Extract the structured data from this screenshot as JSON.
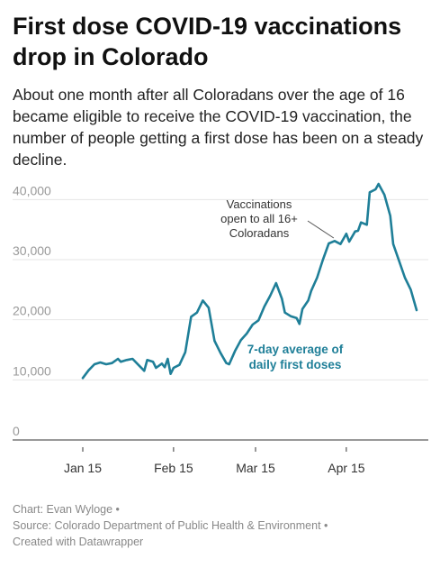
{
  "header": {
    "title_line1": "First dose COVID-19 vaccinations",
    "title_line2": "drop in Colorado",
    "subtitle": "About one month after all Coloradans over the age of 16 became eligible to receive the COVID-19 vaccination, the number of people getting a first dose has been on a steady decline."
  },
  "footer": {
    "credit": "Chart: Evan Wyloge •",
    "source": "Source: Colorado Department of Public Health & Environment •",
    "tool": "Created with Datawrapper"
  },
  "colors": {
    "line": "#1f7f98",
    "grid": "#e6e6e6",
    "tick_text": "#999999",
    "annotation_text": "#333333"
  },
  "chart_data": {
    "type": "line",
    "title": "First dose COVID-19 vaccinations drop in Colorado",
    "xlabel": "",
    "ylabel": "",
    "ylim": [
      0,
      42000
    ],
    "grid": true,
    "y_ticks": [
      {
        "value": 0,
        "label": "0"
      },
      {
        "value": 10000,
        "label": "10,000"
      },
      {
        "value": 20000,
        "label": "20,000"
      },
      {
        "value": 30000,
        "label": "30,000"
      },
      {
        "value": 40000,
        "label": "40,000"
      }
    ],
    "x_ticks": [
      {
        "date": "2021-01-15",
        "label": "Jan 15"
      },
      {
        "date": "2021-02-15",
        "label": "Feb 15"
      },
      {
        "date": "2021-03-15",
        "label": "Mar 15"
      },
      {
        "date": "2021-04-15",
        "label": "Apr 15"
      }
    ],
    "x_range": [
      "2021-01-07",
      "2021-04-24"
    ],
    "series": [
      {
        "name": "7-day average of daily first doses",
        "points": [
          {
            "date": "2021-01-15",
            "value": 10300
          },
          {
            "date": "2021-01-17",
            "value": 11600
          },
          {
            "date": "2021-01-19",
            "value": 12600
          },
          {
            "date": "2021-01-21",
            "value": 12900
          },
          {
            "date": "2021-01-23",
            "value": 12600
          },
          {
            "date": "2021-01-25",
            "value": 12800
          },
          {
            "date": "2021-01-27",
            "value": 13500
          },
          {
            "date": "2021-01-28",
            "value": 13000
          },
          {
            "date": "2021-01-30",
            "value": 13300
          },
          {
            "date": "2021-02-01",
            "value": 13500
          },
          {
            "date": "2021-02-03",
            "value": 12500
          },
          {
            "date": "2021-02-05",
            "value": 11500
          },
          {
            "date": "2021-02-06",
            "value": 13300
          },
          {
            "date": "2021-02-08",
            "value": 13000
          },
          {
            "date": "2021-02-09",
            "value": 12000
          },
          {
            "date": "2021-02-11",
            "value": 12700
          },
          {
            "date": "2021-02-12",
            "value": 12100
          },
          {
            "date": "2021-02-13",
            "value": 13500
          },
          {
            "date": "2021-02-14",
            "value": 11000
          },
          {
            "date": "2021-02-15",
            "value": 12000
          },
          {
            "date": "2021-02-17",
            "value": 12500
          },
          {
            "date": "2021-02-19",
            "value": 14600
          },
          {
            "date": "2021-02-21",
            "value": 20500
          },
          {
            "date": "2021-02-23",
            "value": 21200
          },
          {
            "date": "2021-02-25",
            "value": 23200
          },
          {
            "date": "2021-02-27",
            "value": 22000
          },
          {
            "date": "2021-03-01",
            "value": 16500
          },
          {
            "date": "2021-03-03",
            "value": 14500
          },
          {
            "date": "2021-03-05",
            "value": 12800
          },
          {
            "date": "2021-03-06",
            "value": 12600
          },
          {
            "date": "2021-03-08",
            "value": 14800
          },
          {
            "date": "2021-03-10",
            "value": 16600
          },
          {
            "date": "2021-03-12",
            "value": 17700
          },
          {
            "date": "2021-03-14",
            "value": 19200
          },
          {
            "date": "2021-03-16",
            "value": 19900
          },
          {
            "date": "2021-03-18",
            "value": 22200
          },
          {
            "date": "2021-03-20",
            "value": 24000
          },
          {
            "date": "2021-03-22",
            "value": 26100
          },
          {
            "date": "2021-03-24",
            "value": 23500
          },
          {
            "date": "2021-03-25",
            "value": 21200
          },
          {
            "date": "2021-03-27",
            "value": 20600
          },
          {
            "date": "2021-03-29",
            "value": 20300
          },
          {
            "date": "2021-03-30",
            "value": 19300
          },
          {
            "date": "2021-03-31",
            "value": 21800
          },
          {
            "date": "2021-04-02",
            "value": 23200
          },
          {
            "date": "2021-04-03",
            "value": 24800
          },
          {
            "date": "2021-04-05",
            "value": 27000
          },
          {
            "date": "2021-04-07",
            "value": 30000
          },
          {
            "date": "2021-04-09",
            "value": 32700
          },
          {
            "date": "2021-04-11",
            "value": 33100
          },
          {
            "date": "2021-04-13",
            "value": 32600
          },
          {
            "date": "2021-04-15",
            "value": 34300
          },
          {
            "date": "2021-04-16",
            "value": 33000
          },
          {
            "date": "2021-04-18",
            "value": 34700
          },
          {
            "date": "2021-04-19",
            "value": 34800
          },
          {
            "date": "2021-04-20",
            "value": 36200
          },
          {
            "date": "2021-04-22",
            "value": 35800
          },
          {
            "date": "2021-04-23",
            "value": 41200
          },
          {
            "date": "2021-04-25",
            "value": 41700
          },
          {
            "date": "2021-04-26",
            "value": 42600
          },
          {
            "date": "2021-04-28",
            "value": 40800
          },
          {
            "date": "2021-04-30",
            "value": 37300
          },
          {
            "date": "2021-05-01",
            "value": 32600
          },
          {
            "date": "2021-05-03",
            "value": 29800
          },
          {
            "date": "2021-05-05",
            "value": 27000
          },
          {
            "date": "2021-05-07",
            "value": 25000
          },
          {
            "date": "2021-05-09",
            "value": 21600
          }
        ]
      }
    ],
    "annotations": [
      {
        "name": "eligibility-note",
        "lines": [
          "Vaccinations",
          "open to all 16+",
          "Coloradans"
        ],
        "date": "2021-04-11",
        "value": 33000
      },
      {
        "name": "series-label",
        "lines": [
          "7-day average of",
          "daily first doses"
        ],
        "date": "2021-04-03",
        "value": 14500
      }
    ]
  }
}
